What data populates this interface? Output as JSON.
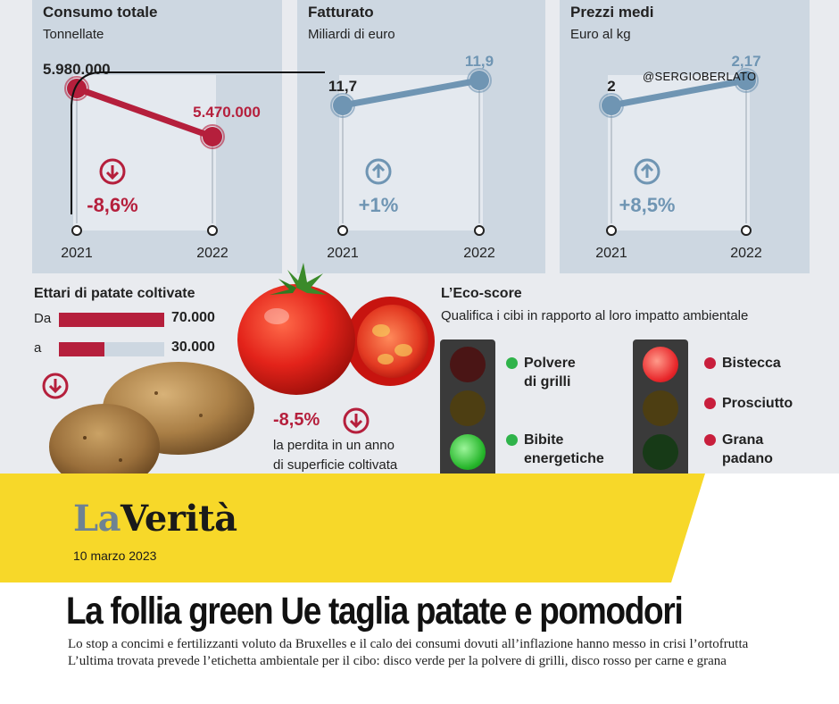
{
  "colors": {
    "consumo": "#b51f3c",
    "fatturato": "#6f95b3",
    "prezzi": "#6f95b3",
    "card_bg": "#cdd7e1",
    "banner_yellow": "#f7d829",
    "logo_la": "#6e8293"
  },
  "chart_data": [
    {
      "type": "line",
      "title": "Consumo totale",
      "subtitle": "Tonnellate",
      "categories": [
        "2021",
        "2022"
      ],
      "values": [
        5980000,
        5470000
      ],
      "value_labels": [
        "5.980.000",
        "5.470.000"
      ],
      "change_label": "-8,6%",
      "change_direction": "down",
      "change_icon": "arrow-down-circle-icon"
    },
    {
      "type": "line",
      "title": "Fatturato",
      "subtitle": "Miliardi di euro",
      "categories": [
        "2021",
        "2022"
      ],
      "values": [
        11.7,
        11.9
      ],
      "value_labels": [
        "11,7",
        "11,9"
      ],
      "change_label": "+1%",
      "change_direction": "up",
      "change_icon": "arrow-up-circle-icon"
    },
    {
      "type": "line",
      "title": "Prezzi medi",
      "subtitle": "Euro al kg",
      "categories": [
        "2021",
        "2022"
      ],
      "values": [
        2,
        2.17
      ],
      "value_labels": [
        "2",
        "2,17"
      ],
      "change_label": "+8,5%",
      "change_direction": "up",
      "change_icon": "arrow-up-circle-icon"
    },
    {
      "type": "bar",
      "title": "Ettari di patate coltivate",
      "categories": [
        "Da",
        "a"
      ],
      "values": [
        70000,
        30000
      ],
      "value_labels": [
        "70.000",
        "30.000"
      ],
      "change_icon": "arrow-down-circle-icon"
    }
  ],
  "tomato": {
    "pct": "-8,5%",
    "line1": "la perdita in un anno",
    "line2": "di superficie coltivata"
  },
  "eco_score": {
    "title": "L’Eco-score",
    "subtitle": "Qualifica i cibi in rapporto al loro impatto ambientale",
    "green_items": [
      {
        "line1": "Polvere",
        "line2": "di grilli"
      },
      {
        "line1": "Bibite",
        "line2": "energetiche"
      }
    ],
    "red_items": [
      {
        "line1": "Bistecca",
        "line2": ""
      },
      {
        "line1": "Prosciutto",
        "line2": ""
      },
      {
        "line1": "Grana",
        "line2": "padano"
      }
    ]
  },
  "handle": "@SERGIOBERLATO",
  "banner": {
    "logo_la": "La",
    "logo_verita": "Verità",
    "date": "10 marzo 2023"
  },
  "article": {
    "headline": "La follia green Ue taglia patate e pomodori",
    "subtitle_1": "Lo stop a concimi e fertilizzanti voluto da Bruxelles e il calo dei consumi dovuti all’inflazione hanno messo in crisi l’ortofrutta",
    "subtitle_2": "L’ultima trovata prevede l’etichetta ambientale per il cibo: disco verde per la polvere di grilli, disco rosso per carne e grana"
  }
}
